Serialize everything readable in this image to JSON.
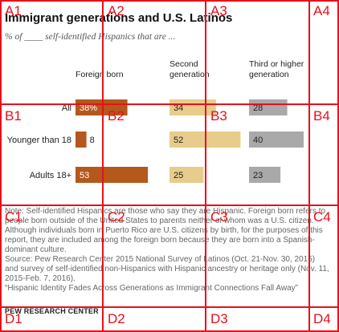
{
  "chart_data": {
    "type": "bar",
    "title": "Immigrant generations and U.S. Latinos",
    "subtitle": "% of ____ self-identified Hispanics that are ...",
    "categories": [
      "All",
      "Younger than 18",
      "Adults 18+"
    ],
    "series": [
      {
        "name": "Foreign born",
        "values": [
          38,
          8,
          53
        ],
        "labels": [
          "38%",
          "8",
          "53"
        ],
        "color": "#b4581c"
      },
      {
        "name": "Second generation",
        "values": [
          34,
          52,
          25
        ],
        "labels": [
          "34",
          "52",
          "25"
        ],
        "color": "#e7cc8c"
      },
      {
        "name": "Third or higher generation",
        "values": [
          28,
          40,
          23
        ],
        "labels": [
          "28",
          "40",
          "23"
        ],
        "color": "#a9a9a9"
      }
    ],
    "legend": "panel headers above each column",
    "grid": false
  },
  "notes": {
    "note": "Note: Self-identified Hispanics are those who say they are Hispanic. Foreign born refers to people born outside of the United States to parents neither of whom was a U.S. citizen. Although individuals born in Puerto Rico are U.S. citizens by birth, for the purposes of this report, they are included among the foreign born because they are born into a Spanish-dominant culture.",
    "source": "Source: Pew Research Center 2015 National Survey of Latinos (Oct. 21-Nov. 30, 2015) and survey of self-identified non-Hispanics with Hispanic ancestry or heritage only (Nov. 11, 2015-Feb. 7, 2016).",
    "report": "“Hispanic Identity Fades Across Generations as Immigrant Connections Fall Away”"
  },
  "org": "PEW RESEARCH CENTER",
  "overlay_grid": {
    "labels": [
      "A1",
      "A2",
      "A3",
      "A4",
      "B1",
      "B2",
      "B3",
      "B4",
      "C1",
      "C2",
      "C3",
      "C4",
      "D1",
      "D2",
      "D3",
      "D4"
    ],
    "color": "#e8101a"
  }
}
